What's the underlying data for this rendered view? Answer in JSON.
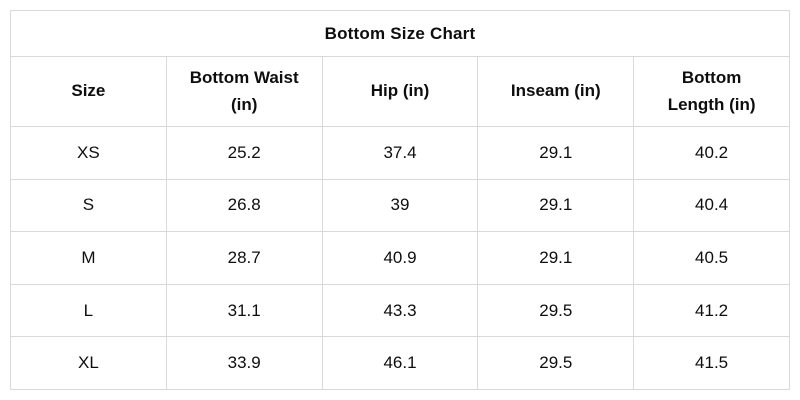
{
  "title": "Bottom Size Chart",
  "colors": {
    "border": "#d9d9d9",
    "background": "#ffffff",
    "text": "#0e0e0e"
  },
  "chart_data": {
    "type": "table",
    "title": "Bottom Size Chart",
    "columns": [
      "Size",
      "Bottom Waist (in)",
      "Hip (in)",
      "Inseam (in)",
      "Bottom Length (in)"
    ],
    "rows": [
      [
        "XS",
        "25.2",
        "37.4",
        "29.1",
        "40.2"
      ],
      [
        "S",
        "26.8",
        "39",
        "29.1",
        "40.4"
      ],
      [
        "M",
        "28.7",
        "40.9",
        "29.1",
        "40.5"
      ],
      [
        "L",
        "31.1",
        "43.3",
        "29.5",
        "41.2"
      ],
      [
        "XL",
        "33.9",
        "46.1",
        "29.5",
        "41.5"
      ]
    ],
    "layout": {
      "grid": true,
      "text_align": "center",
      "header_bold": true
    }
  }
}
